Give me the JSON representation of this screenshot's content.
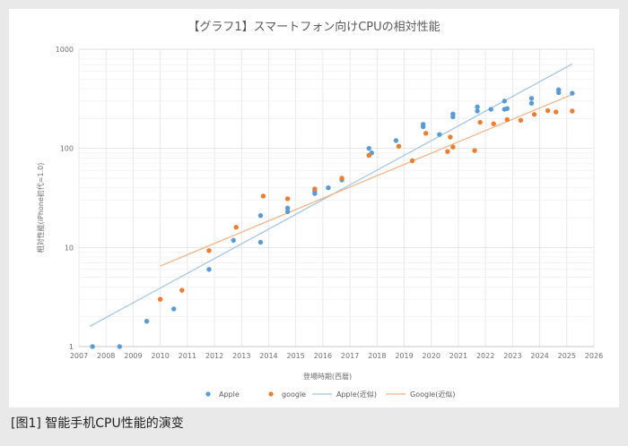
{
  "caption": "[图1] 智能手机CPU性能的演变",
  "chart_data": {
    "type": "scatter",
    "title": "【グラフ1】スマートフォン向けCPUの相対性能",
    "xlabel": "登場時期(西暦)",
    "ylabel": "相対性能(iPhone初代=1.0)",
    "y_scale": "log",
    "xlim": [
      2007,
      2026
    ],
    "ylim": [
      1,
      1000
    ],
    "x_ticks": [
      "2007",
      "2008",
      "2009",
      "2010",
      "2011",
      "2012",
      "2013",
      "2014",
      "2015",
      "2016",
      "2017",
      "2018",
      "2019",
      "2020",
      "2021",
      "2022",
      "2023",
      "2024",
      "2025",
      "2026"
    ],
    "y_ticks": [
      "1",
      "10",
      "100",
      "1000"
    ],
    "grid": true,
    "legend_position": "bottom",
    "series": [
      {
        "name": "Apple",
        "color": "#5b9bd5",
        "points": [
          [
            2007.5,
            1.0
          ],
          [
            2008.5,
            1.0
          ],
          [
            2009.5,
            1.8
          ],
          [
            2010.5,
            2.4
          ],
          [
            2011.8,
            6.0
          ],
          [
            2012.7,
            11.8
          ],
          [
            2013.7,
            11.3
          ],
          [
            2013.7,
            21
          ],
          [
            2014.7,
            23
          ],
          [
            2014.7,
            25
          ],
          [
            2015.7,
            35
          ],
          [
            2015.7,
            37
          ],
          [
            2016.2,
            40
          ],
          [
            2016.7,
            48
          ],
          [
            2017.7,
            85
          ],
          [
            2017.7,
            100
          ],
          [
            2017.8,
            90
          ],
          [
            2018.7,
            120
          ],
          [
            2019.7,
            165
          ],
          [
            2019.7,
            175
          ],
          [
            2020.3,
            138
          ],
          [
            2020.8,
            208
          ],
          [
            2020.8,
            222
          ],
          [
            2021.7,
            238
          ],
          [
            2021.7,
            262
          ],
          [
            2022.2,
            248
          ],
          [
            2022.7,
            248
          ],
          [
            2022.7,
            300
          ],
          [
            2022.8,
            252
          ],
          [
            2023.7,
            285
          ],
          [
            2023.7,
            320
          ],
          [
            2024.7,
            365
          ],
          [
            2024.7,
            390
          ],
          [
            2025.2,
            360
          ]
        ]
      },
      {
        "name": "google",
        "color": "#ed7d31",
        "points": [
          [
            2010.0,
            3.0
          ],
          [
            2010.8,
            3.7
          ],
          [
            2011.8,
            9.3
          ],
          [
            2012.8,
            16
          ],
          [
            2013.8,
            33
          ],
          [
            2014.7,
            31
          ],
          [
            2015.7,
            39
          ],
          [
            2016.7,
            50
          ],
          [
            2017.7,
            85
          ],
          [
            2018.8,
            105
          ],
          [
            2019.3,
            75
          ],
          [
            2019.8,
            142
          ],
          [
            2020.6,
            93
          ],
          [
            2020.7,
            130
          ],
          [
            2020.8,
            103
          ],
          [
            2021.6,
            95
          ],
          [
            2021.8,
            183
          ],
          [
            2022.3,
            177
          ],
          [
            2022.8,
            195
          ],
          [
            2023.3,
            192
          ],
          [
            2023.8,
            220
          ],
          [
            2024.3,
            240
          ],
          [
            2024.6,
            233
          ],
          [
            2025.2,
            238
          ]
        ]
      }
    ],
    "trendlines": [
      {
        "name": "Apple(近似)",
        "color": "#9dc3e6",
        "x": [
          2007.4,
          2025.2
        ],
        "y": [
          1.6,
          710
        ]
      },
      {
        "name": "Google(近似)",
        "color": "#f4b183",
        "x": [
          2010.0,
          2025.2
        ],
        "y": [
          6.5,
          350
        ]
      }
    ]
  }
}
